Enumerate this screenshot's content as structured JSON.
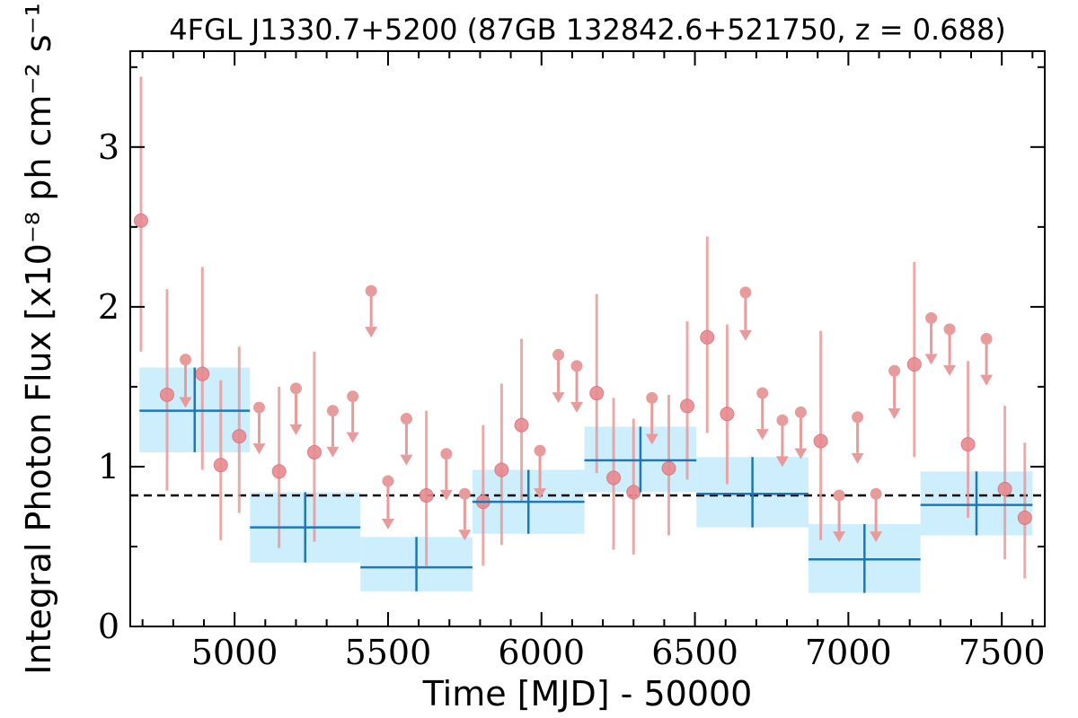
{
  "chart_data": {
    "type": "scatter",
    "title": "4FGL J1330.7+5200 (87GB 132842.6+521750, z = 0.688)",
    "xlabel": "Time [MJD] - 50000",
    "ylabel": "Integral Photon Flux [x10⁻⁸ ph cm⁻² s⁻¹]",
    "xlim": [
      4660,
      7640
    ],
    "ylim": [
      0,
      3.6
    ],
    "xticks": [
      5000,
      5500,
      6000,
      6500,
      7000,
      7500
    ],
    "xtick_labels": [
      "5000",
      "5500",
      "6000",
      "6500",
      "7000",
      "7500"
    ],
    "yticks": [
      0,
      1,
      2,
      3
    ],
    "ytick_labels": [
      "0",
      "1",
      "2",
      "3"
    ],
    "grid": false,
    "reference_line": {
      "y": 0.82,
      "style": "dashed",
      "color": "#000000"
    },
    "colors": {
      "detections": "#e88a8e",
      "error_bars": "#e89b9b",
      "upper_limits": "#e89b9b",
      "bins_fill": "#cdeefd",
      "bins_line": "#1f77b4"
    },
    "series": [
      {
        "kind": "detections",
        "points": [
          {
            "x": 4695,
            "y": 2.54,
            "lo": 1.72,
            "hi": 3.44
          },
          {
            "x": 4780,
            "y": 1.45,
            "lo": 0.85,
            "hi": 2.11
          },
          {
            "x": 4895,
            "y": 1.58,
            "lo": 0.98,
            "hi": 2.25
          },
          {
            "x": 4955,
            "y": 1.01,
            "lo": 0.54,
            "hi": 1.54
          },
          {
            "x": 5015,
            "y": 1.19,
            "lo": 0.71,
            "hi": 1.75
          },
          {
            "x": 5145,
            "y": 0.97,
            "lo": 0.49,
            "hi": 1.5
          },
          {
            "x": 5260,
            "y": 1.09,
            "lo": 0.53,
            "hi": 1.72
          },
          {
            "x": 5625,
            "y": 0.82,
            "lo": 0.38,
            "hi": 1.35
          },
          {
            "x": 5810,
            "y": 0.78,
            "lo": 0.38,
            "hi": 1.26
          },
          {
            "x": 5870,
            "y": 0.98,
            "lo": 0.51,
            "hi": 1.52
          },
          {
            "x": 5935,
            "y": 1.26,
            "lo": 0.78,
            "hi": 1.8
          },
          {
            "x": 6180,
            "y": 1.46,
            "lo": 0.96,
            "hi": 2.08
          },
          {
            "x": 6235,
            "y": 0.93,
            "lo": 0.48,
            "hi": 1.43
          },
          {
            "x": 6300,
            "y": 0.84,
            "lo": 0.45,
            "hi": 1.3
          },
          {
            "x": 6415,
            "y": 0.99,
            "lo": 0.57,
            "hi": 1.45
          },
          {
            "x": 6475,
            "y": 1.38,
            "lo": 0.92,
            "hi": 1.91
          },
          {
            "x": 6540,
            "y": 1.81,
            "lo": 1.21,
            "hi": 2.44
          },
          {
            "x": 6605,
            "y": 1.33,
            "lo": 0.89,
            "hi": 1.89
          },
          {
            "x": 6910,
            "y": 1.16,
            "lo": 0.54,
            "hi": 1.85
          },
          {
            "x": 7215,
            "y": 1.64,
            "lo": 1.06,
            "hi": 2.28
          },
          {
            "x": 7390,
            "y": 1.14,
            "lo": 0.68,
            "hi": 1.66
          },
          {
            "x": 7510,
            "y": 0.86,
            "lo": 0.42,
            "hi": 1.38
          },
          {
            "x": 7575,
            "y": 0.68,
            "lo": 0.3,
            "hi": 1.15
          }
        ]
      },
      {
        "kind": "upper_limits",
        "points": [
          {
            "x": 4840,
            "y": 1.67,
            "y_arrow": 1.39
          },
          {
            "x": 5080,
            "y": 1.37,
            "y_arrow": 1.1
          },
          {
            "x": 5200,
            "y": 1.49,
            "y_arrow": 1.22
          },
          {
            "x": 5320,
            "y": 1.35,
            "y_arrow": 1.08
          },
          {
            "x": 5385,
            "y": 1.44,
            "y_arrow": 1.17
          },
          {
            "x": 5445,
            "y": 2.1,
            "y_arrow": 1.83
          },
          {
            "x": 5500,
            "y": 0.91,
            "y_arrow": 0.63
          },
          {
            "x": 5560,
            "y": 1.3,
            "y_arrow": 1.03
          },
          {
            "x": 5690,
            "y": 1.08,
            "y_arrow": 0.81
          },
          {
            "x": 5750,
            "y": 0.83,
            "y_arrow": 0.56
          },
          {
            "x": 5995,
            "y": 1.1,
            "y_arrow": 0.82
          },
          {
            "x": 6055,
            "y": 1.7,
            "y_arrow": 1.42
          },
          {
            "x": 6115,
            "y": 1.63,
            "y_arrow": 1.36
          },
          {
            "x": 6360,
            "y": 1.43,
            "y_arrow": 1.16
          },
          {
            "x": 6665,
            "y": 2.09,
            "y_arrow": 1.81
          },
          {
            "x": 6720,
            "y": 1.46,
            "y_arrow": 1.19
          },
          {
            "x": 6785,
            "y": 1.29,
            "y_arrow": 1.02
          },
          {
            "x": 6845,
            "y": 1.34,
            "y_arrow": 1.07
          },
          {
            "x": 6970,
            "y": 0.82,
            "y_arrow": 0.55
          },
          {
            "x": 7030,
            "y": 1.31,
            "y_arrow": 1.04
          },
          {
            "x": 7090,
            "y": 0.83,
            "y_arrow": 0.55
          },
          {
            "x": 7150,
            "y": 1.6,
            "y_arrow": 1.32
          },
          {
            "x": 7270,
            "y": 1.93,
            "y_arrow": 1.66
          },
          {
            "x": 7330,
            "y": 1.86,
            "y_arrow": 1.59
          },
          {
            "x": 7450,
            "y": 1.8,
            "y_arrow": 1.53
          }
        ]
      },
      {
        "kind": "bins",
        "points": [
          {
            "x0": 4690,
            "x1": 5050,
            "y": 1.35,
            "lo": 1.09,
            "hi": 1.62
          },
          {
            "x0": 5050,
            "x1": 5410,
            "y": 0.62,
            "lo": 0.4,
            "hi": 0.84
          },
          {
            "x0": 5410,
            "x1": 5775,
            "y": 0.37,
            "lo": 0.22,
            "hi": 0.56
          },
          {
            "x0": 5775,
            "x1": 6140,
            "y": 0.78,
            "lo": 0.58,
            "hi": 0.98
          },
          {
            "x0": 6140,
            "x1": 6505,
            "y": 1.04,
            "lo": 0.84,
            "hi": 1.25
          },
          {
            "x0": 6505,
            "x1": 6870,
            "y": 0.83,
            "lo": 0.62,
            "hi": 1.06
          },
          {
            "x0": 6870,
            "x1": 7235,
            "y": 0.42,
            "lo": 0.21,
            "hi": 0.64
          },
          {
            "x0": 7235,
            "x1": 7600,
            "y": 0.76,
            "lo": 0.57,
            "hi": 0.97
          }
        ]
      }
    ]
  }
}
